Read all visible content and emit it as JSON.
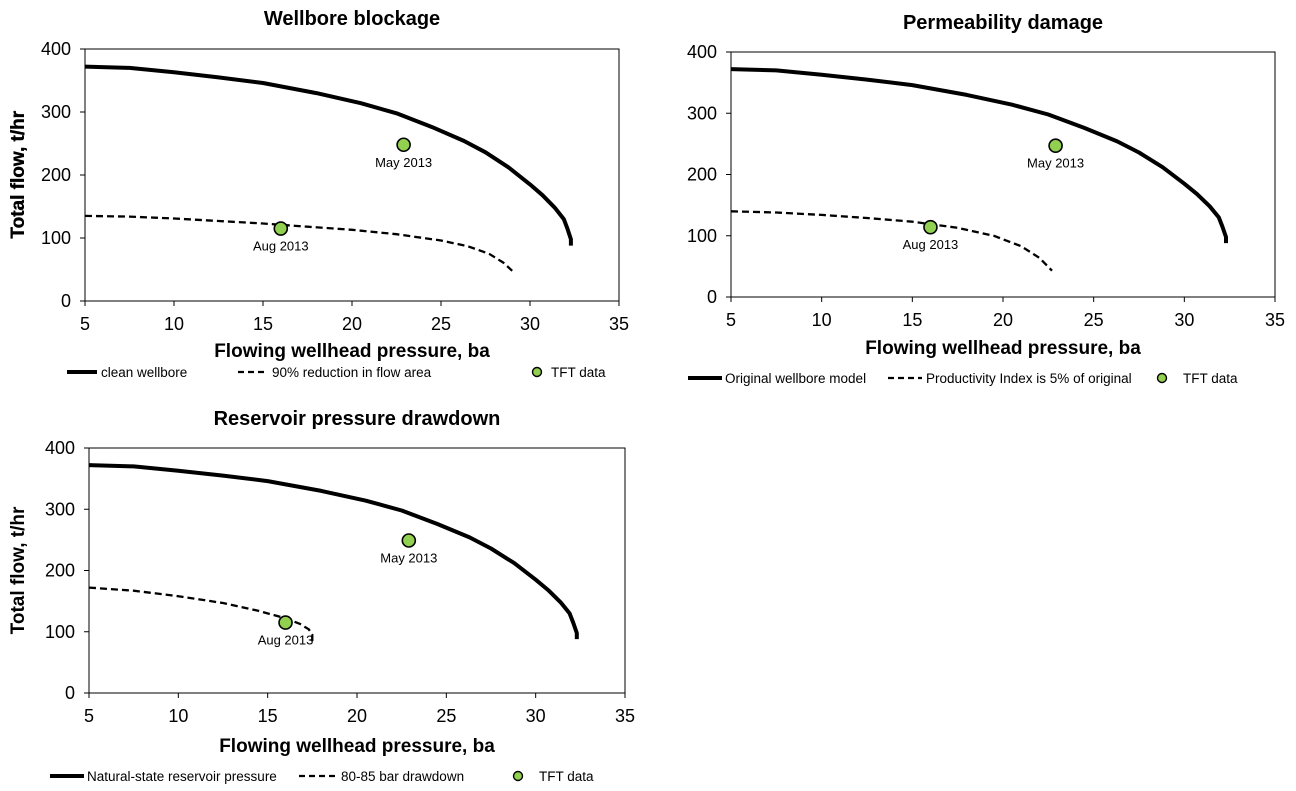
{
  "chart_data": [
    {
      "type": "line",
      "title": "Wellbore blockage",
      "xlabel": "Flowing wellhead pressure, ba",
      "ylabel": "Total flow, t/hr",
      "xlim": [
        5,
        35
      ],
      "ylim": [
        0,
        400
      ],
      "xticks": [
        "5",
        "10",
        "15",
        "20",
        "25",
        "30",
        "35"
      ],
      "yticks": [
        "0",
        "100",
        "200",
        "300",
        "400"
      ],
      "grid": false,
      "legend_position": "bottom",
      "series": [
        {
          "name": "clean wellbore",
          "style": "solid",
          "x": [
            5,
            7.5,
            10,
            12.5,
            15,
            18,
            20.5,
            22.5,
            24.5,
            26.3,
            27.5,
            28.8,
            30,
            30.7,
            31.4,
            31.9,
            32.1,
            32.3,
            32.3
          ],
          "y": [
            372,
            370,
            363,
            355,
            346,
            330,
            314,
            298,
            276,
            254,
            236,
            212,
            185,
            168,
            148,
            130,
            115,
            98,
            88
          ]
        },
        {
          "name": "90% reduction in flow area",
          "style": "dashed",
          "x": [
            5,
            7.5,
            10,
            12.5,
            15,
            17.5,
            20,
            22.5,
            25,
            26.5,
            27.7,
            28.5,
            29
          ],
          "y": [
            135,
            134,
            131,
            127,
            123,
            118,
            113,
            106,
            96,
            87,
            75,
            61,
            48
          ]
        },
        {
          "name": "TFT data",
          "style": "marker",
          "points": [
            {
              "x": 16,
              "y": 115,
              "label": "Aug 2013"
            },
            {
              "x": 22.9,
              "y": 248,
              "label": "May 2013"
            }
          ]
        }
      ]
    },
    {
      "type": "line",
      "title": "Permeability damage",
      "xlabel": "Flowing wellhead pressure, ba",
      "ylabel": "Total flow, t/hr",
      "xlim": [
        5,
        35
      ],
      "ylim": [
        0,
        400
      ],
      "xticks": [
        "5",
        "10",
        "15",
        "20",
        "25",
        "30",
        "35"
      ],
      "yticks": [
        "0",
        "100",
        "200",
        "300",
        "400"
      ],
      "grid": false,
      "legend_position": "bottom",
      "series": [
        {
          "name": "Original wellbore model",
          "style": "solid",
          "x": [
            5,
            7.5,
            10,
            12.5,
            15,
            18,
            20.5,
            22.5,
            24.5,
            26.3,
            27.5,
            28.8,
            30,
            30.7,
            31.4,
            31.9,
            32.1,
            32.3,
            32.3
          ],
          "y": [
            372,
            370,
            363,
            355,
            346,
            330,
            314,
            298,
            276,
            254,
            236,
            212,
            185,
            168,
            148,
            130,
            115,
            98,
            88
          ]
        },
        {
          "name": "Productivity Index is 5% of original",
          "style": "dashed",
          "x": [
            5,
            7.5,
            10,
            12.5,
            15,
            17.5,
            19.5,
            21,
            22,
            22.7
          ],
          "y": [
            140,
            138,
            134,
            129,
            123,
            113,
            100,
            83,
            64,
            43
          ]
        },
        {
          "name": "TFT data",
          "style": "marker",
          "points": [
            {
              "x": 16,
              "y": 114,
              "label": "Aug 2013"
            },
            {
              "x": 22.9,
              "y": 247,
              "label": "May 2013"
            }
          ]
        }
      ]
    },
    {
      "type": "line",
      "title": "Reservoir pressure drawdown",
      "xlabel": "Flowing wellhead pressure, ba",
      "ylabel": "Total flow, t/hr",
      "xlim": [
        5,
        35
      ],
      "ylim": [
        0,
        400
      ],
      "xticks": [
        "5",
        "10",
        "15",
        "20",
        "25",
        "30",
        "35"
      ],
      "yticks": [
        "0",
        "100",
        "200",
        "300",
        "400"
      ],
      "grid": false,
      "legend_position": "bottom",
      "series": [
        {
          "name": "Natural-state reservoir pressure",
          "style": "solid",
          "x": [
            5,
            7.5,
            10,
            12.5,
            15,
            18,
            20.5,
            22.5,
            24.5,
            26.3,
            27.5,
            28.8,
            30,
            30.7,
            31.4,
            31.9,
            32.1,
            32.3,
            32.3
          ],
          "y": [
            372,
            370,
            363,
            355,
            346,
            330,
            314,
            298,
            276,
            254,
            236,
            212,
            185,
            168,
            148,
            130,
            115,
            98,
            88
          ]
        },
        {
          "name": "80-85 bar drawdown",
          "style": "dashed",
          "x": [
            5,
            7.5,
            10,
            12.5,
            14.5,
            16,
            16.8,
            17.3,
            17.5,
            17.5
          ],
          "y": [
            172,
            167,
            158,
            147,
            134,
            122,
            113,
            104,
            95,
            84
          ]
        },
        {
          "name": "TFT data",
          "style": "marker",
          "points": [
            {
              "x": 16,
              "y": 115,
              "label": "Aug 2013"
            },
            {
              "x": 22.9,
              "y": 249,
              "label": "May 2013"
            }
          ]
        }
      ]
    }
  ],
  "colors": {
    "line": "#000000",
    "marker_fill": "#92d050",
    "marker_stroke": "#000000"
  }
}
